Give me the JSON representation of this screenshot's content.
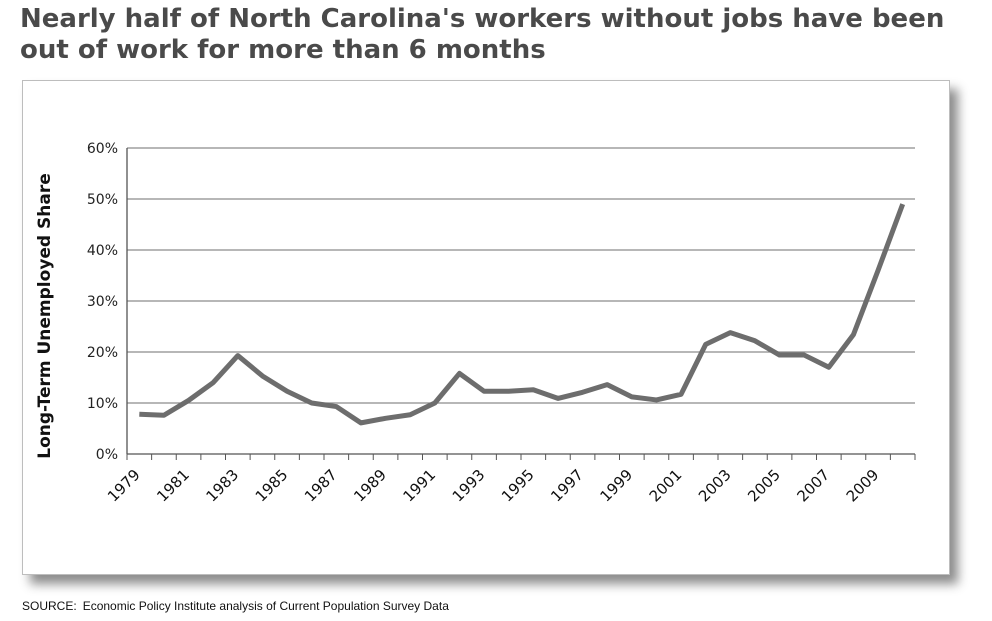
{
  "header": {
    "title": "Nearly half of North Carolina's workers without jobs have been out of work for more than 6 months"
  },
  "footer": {
    "source_label": "SOURCE:",
    "source_text": "Economic Policy Institute analysis of Current Population Survey Data"
  },
  "chart_data": {
    "type": "line",
    "title": "",
    "xlabel": "",
    "ylabel": "Long-Term Unemployed Share",
    "x": [
      1979,
      1980,
      1981,
      1982,
      1983,
      1984,
      1985,
      1986,
      1987,
      1988,
      1989,
      1990,
      1991,
      1992,
      1993,
      1994,
      1995,
      1996,
      1997,
      1998,
      1999,
      2000,
      2001,
      2002,
      2003,
      2004,
      2005,
      2006,
      2007,
      2008,
      2009,
      2010
    ],
    "series": [
      {
        "name": "",
        "color": "#6d6d6d",
        "values": [
          7.8,
          7.6,
          10.5,
          14.0,
          19.3,
          15.3,
          12.3,
          10.0,
          9.3,
          6.1,
          7.0,
          7.7,
          10.0,
          15.8,
          12.3,
          12.3,
          12.6,
          10.9,
          12.1,
          13.6,
          11.2,
          10.6,
          11.7,
          21.5,
          23.8,
          22.2,
          19.4,
          19.4,
          17.0,
          23.4,
          36.0,
          49.0
        ]
      }
    ],
    "xtick_labels": [
      "1979",
      "1981",
      "1983",
      "1985",
      "1987",
      "1989",
      "1991",
      "1993",
      "1995",
      "1997",
      "1999",
      "2001",
      "2003",
      "2005",
      "2007",
      "2009"
    ],
    "ytick_labels": [
      "0%",
      "10%",
      "20%",
      "30%",
      "40%",
      "50%",
      "60%"
    ],
    "ylim": [
      0,
      60
    ],
    "grid": true,
    "legend": "none"
  }
}
